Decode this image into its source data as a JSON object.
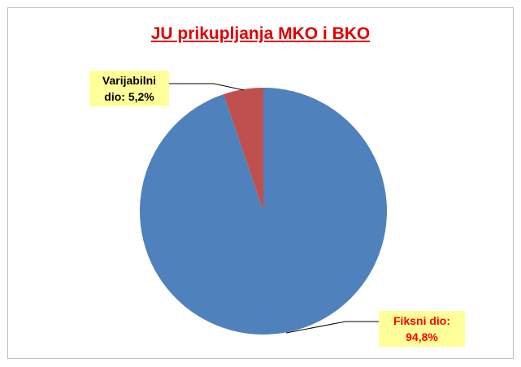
{
  "chart_data": {
    "type": "pie",
    "title": "JU prikupljanja MKO i BKO",
    "categories": [
      "Fiksni dio:",
      "Varijabilni dio:"
    ],
    "values": [
      94.8,
      5.2
    ],
    "value_labels": [
      "94,8%",
      "5,2%"
    ],
    "colors": [
      "#4f81bd",
      "#c0504d"
    ]
  }
}
